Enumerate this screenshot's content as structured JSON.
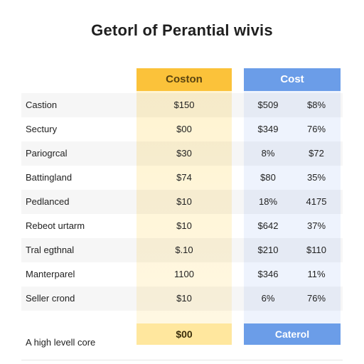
{
  "title": "Getorl of Perantial wivis",
  "columns": {
    "col_a": "Coston",
    "col_b": "Cost"
  },
  "footer": {
    "label": "A high levell core",
    "col_a": "$00",
    "col_b": "Caterol"
  },
  "colors": {
    "accent_yellow": "#fbc23a",
    "accent_blue": "#6b9de8",
    "tint_yellow": "#fff6db",
    "tint_blue": "#eef3fd"
  },
  "chart_data": {
    "type": "table",
    "title": "Getorl of Perantial wivis",
    "header": [
      "",
      "Coston",
      "Cost",
      ""
    ],
    "rows": [
      {
        "label": "Castion",
        "a": "$150",
        "b": "$509",
        "c": "$8%"
      },
      {
        "label": "Sectury",
        "a": "$00",
        "b": "$349",
        "c": "76%"
      },
      {
        "label": "Pariogrcal",
        "a": "$30",
        "b": "8%",
        "c": "$72"
      },
      {
        "label": "Battingland",
        "a": "$74",
        "b": "$80",
        "c": "35%"
      },
      {
        "label": "Pedlanced",
        "a": "$10",
        "b": "18%",
        "c": "4175"
      },
      {
        "label": "Rebeot urtarm",
        "a": "$10",
        "b": "$642",
        "c": "37%"
      },
      {
        "label": "Tral egthnal",
        "a": "$.10",
        "b": "$210",
        "c": "$110"
      },
      {
        "label": "Manterparel",
        "a": "1100",
        "b": "$346",
        "c": "11%"
      },
      {
        "label": "Seller crond",
        "a": "$10",
        "b": "6%",
        "c": "76%"
      }
    ],
    "footer": {
      "label": "A high levell core",
      "a": "$00",
      "b": "Caterol"
    }
  }
}
